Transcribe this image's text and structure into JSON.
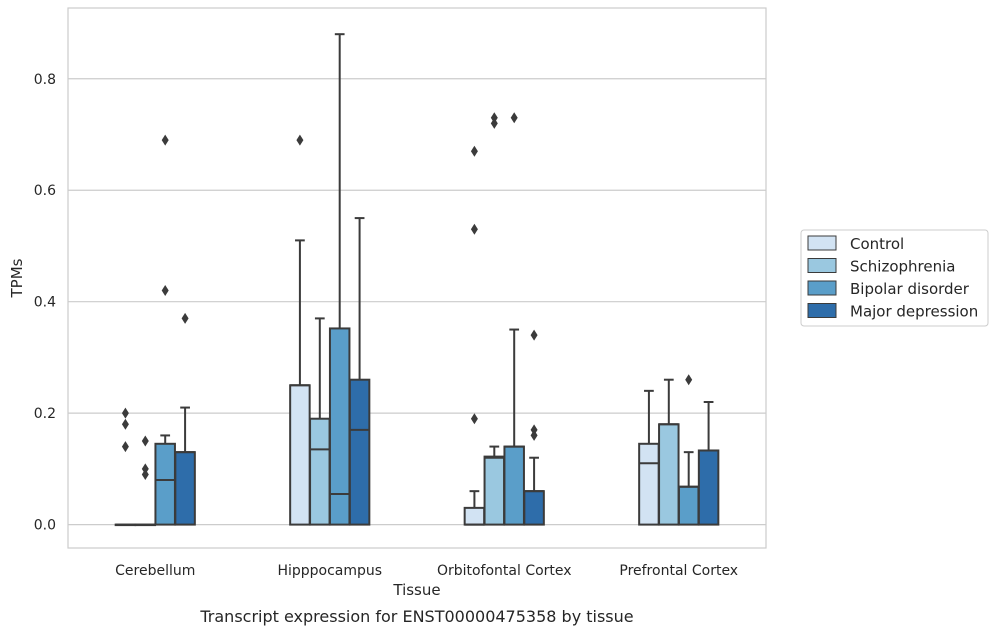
{
  "chart_data": {
    "type": "boxplot",
    "xlabel": "Tissue",
    "ylabel": "TPMs",
    "caption": "Transcript expression for ENST00000475358 by tissue",
    "categories": [
      "Cerebellum",
      "Hipppocampus",
      "Orbitofontal Cortex",
      "Prefrontal Cortex"
    ],
    "ylim": [
      -0.042,
      0.927
    ],
    "yticks": [
      0.0,
      0.2,
      0.4,
      0.6,
      0.8
    ],
    "ytick_labels": [
      "0.0",
      "0.2",
      "0.4",
      "0.6",
      "0.8"
    ],
    "grid": "horizontal",
    "legend_position": "right",
    "colors": {
      "Control": "#d2e3f3",
      "Schizophrenia": "#9ac8e0",
      "Bipolar disorder": "#5a9ec9",
      "Major depression": "#2e6daa",
      "line": "#3b3b3b",
      "grid": "#cccccc"
    },
    "series": [
      {
        "name": "Control",
        "boxes": [
          {
            "q1": 0.0,
            "median": 0.0,
            "q3": 0.0,
            "whislo": 0.0,
            "whishi": 0.0,
            "fliers": [
              0.2,
              0.18,
              0.14
            ]
          },
          {
            "q1": 0.0,
            "median": 0.25,
            "q3": 0.25,
            "whislo": 0.0,
            "whishi": 0.51,
            "fliers": [
              0.69
            ]
          },
          {
            "q1": 0.0,
            "median": 0.0,
            "q3": 0.03,
            "whislo": 0.0,
            "whishi": 0.06,
            "fliers": [
              0.19,
              0.53,
              0.67
            ]
          },
          {
            "q1": 0.0,
            "median": 0.11,
            "q3": 0.145,
            "whislo": 0.0,
            "whishi": 0.24,
            "fliers": []
          }
        ]
      },
      {
        "name": "Schizophrenia",
        "boxes": [
          {
            "q1": 0.0,
            "median": 0.0,
            "q3": 0.0,
            "whislo": 0.0,
            "whishi": 0.0,
            "fliers": [
              0.15,
              0.1,
              0.09
            ]
          },
          {
            "q1": 0.0,
            "median": 0.135,
            "q3": 0.19,
            "whislo": 0.0,
            "whishi": 0.37,
            "fliers": []
          },
          {
            "q1": 0.0,
            "median": 0.12,
            "q3": 0.122,
            "whislo": 0.0,
            "whishi": 0.14,
            "fliers": [
              0.72,
              0.73
            ]
          },
          {
            "q1": 0.0,
            "median": 0.18,
            "q3": 0.18,
            "whislo": 0.0,
            "whishi": 0.26,
            "fliers": []
          }
        ]
      },
      {
        "name": "Bipolar disorder",
        "boxes": [
          {
            "q1": 0.0,
            "median": 0.08,
            "q3": 0.145,
            "whislo": 0.0,
            "whishi": 0.16,
            "fliers": [
              0.42,
              0.69
            ]
          },
          {
            "q1": 0.0,
            "median": 0.055,
            "q3": 0.352,
            "whislo": 0.0,
            "whishi": 0.88,
            "fliers": []
          },
          {
            "q1": 0.0,
            "median": 0.14,
            "q3": 0.14,
            "whislo": 0.0,
            "whishi": 0.35,
            "fliers": [
              0.73
            ]
          },
          {
            "q1": 0.0,
            "median": 0.068,
            "q3": 0.068,
            "whislo": 0.0,
            "whishi": 0.13,
            "fliers": [
              0.26
            ]
          }
        ]
      },
      {
        "name": "Major depression",
        "boxes": [
          {
            "q1": 0.0,
            "median": 0.13,
            "q3": 0.13,
            "whislo": 0.0,
            "whishi": 0.21,
            "fliers": [
              0.37
            ]
          },
          {
            "q1": 0.0,
            "median": 0.17,
            "q3": 0.26,
            "whislo": 0.0,
            "whishi": 0.55,
            "fliers": []
          },
          {
            "q1": 0.0,
            "median": 0.06,
            "q3": 0.06,
            "whislo": 0.0,
            "whishi": 0.12,
            "fliers": [
              0.17,
              0.16,
              0.34
            ]
          },
          {
            "q1": 0.0,
            "median": 0.133,
            "q3": 0.133,
            "whislo": 0.0,
            "whishi": 0.22,
            "fliers": []
          }
        ]
      }
    ]
  }
}
